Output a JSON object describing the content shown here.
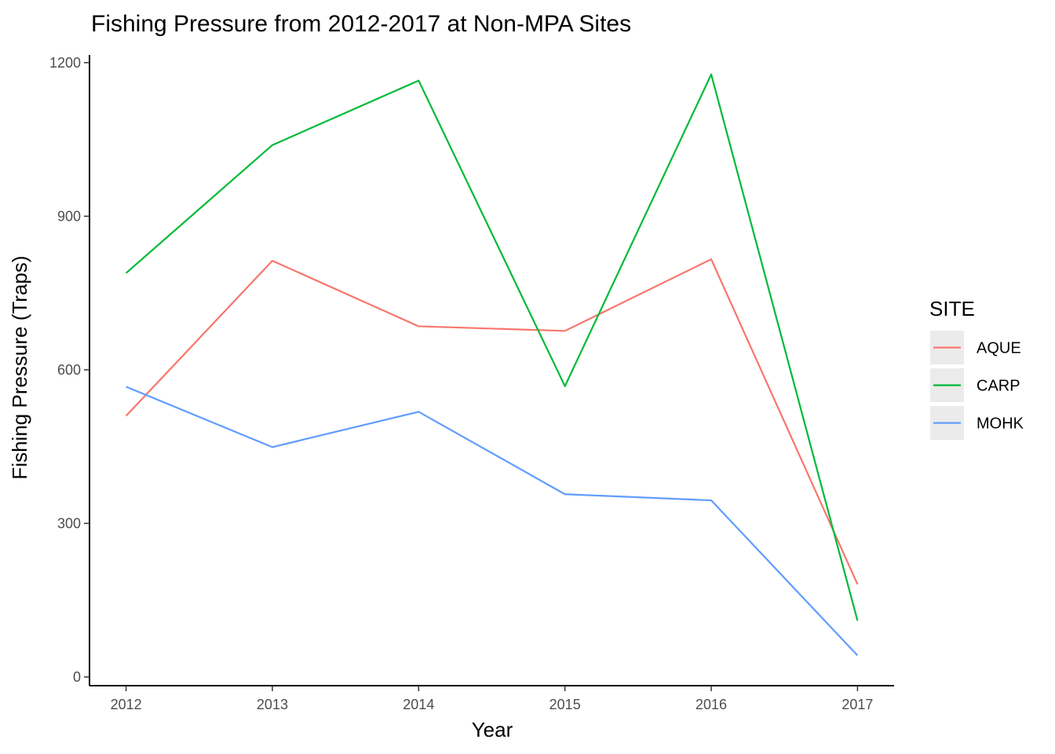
{
  "chart_data": {
    "type": "line",
    "title": "Fishing Pressure from 2012-2017 at Non-MPA Sites",
    "xlabel": "Year",
    "ylabel": "Fishing Pressure (Traps)",
    "x": [
      2012,
      2013,
      2014,
      2015,
      2016,
      2017
    ],
    "xlim": [
      2011.75,
      2017.25
    ],
    "ylim": [
      -17,
      1215
    ],
    "yticks": [
      0,
      300,
      600,
      900,
      1200
    ],
    "grid": false,
    "legend_title": "SITE",
    "legend_position": "right",
    "series": [
      {
        "name": "AQUE",
        "color": "#F8766D",
        "values": [
          510,
          813,
          685,
          676,
          816,
          181
        ]
      },
      {
        "name": "CARP",
        "color": "#00BA38",
        "values": [
          789,
          1039,
          1165,
          568,
          1177,
          110
        ]
      },
      {
        "name": "MOHK",
        "color": "#619CFF",
        "values": [
          567,
          449,
          518,
          357,
          345,
          42
        ]
      }
    ]
  }
}
